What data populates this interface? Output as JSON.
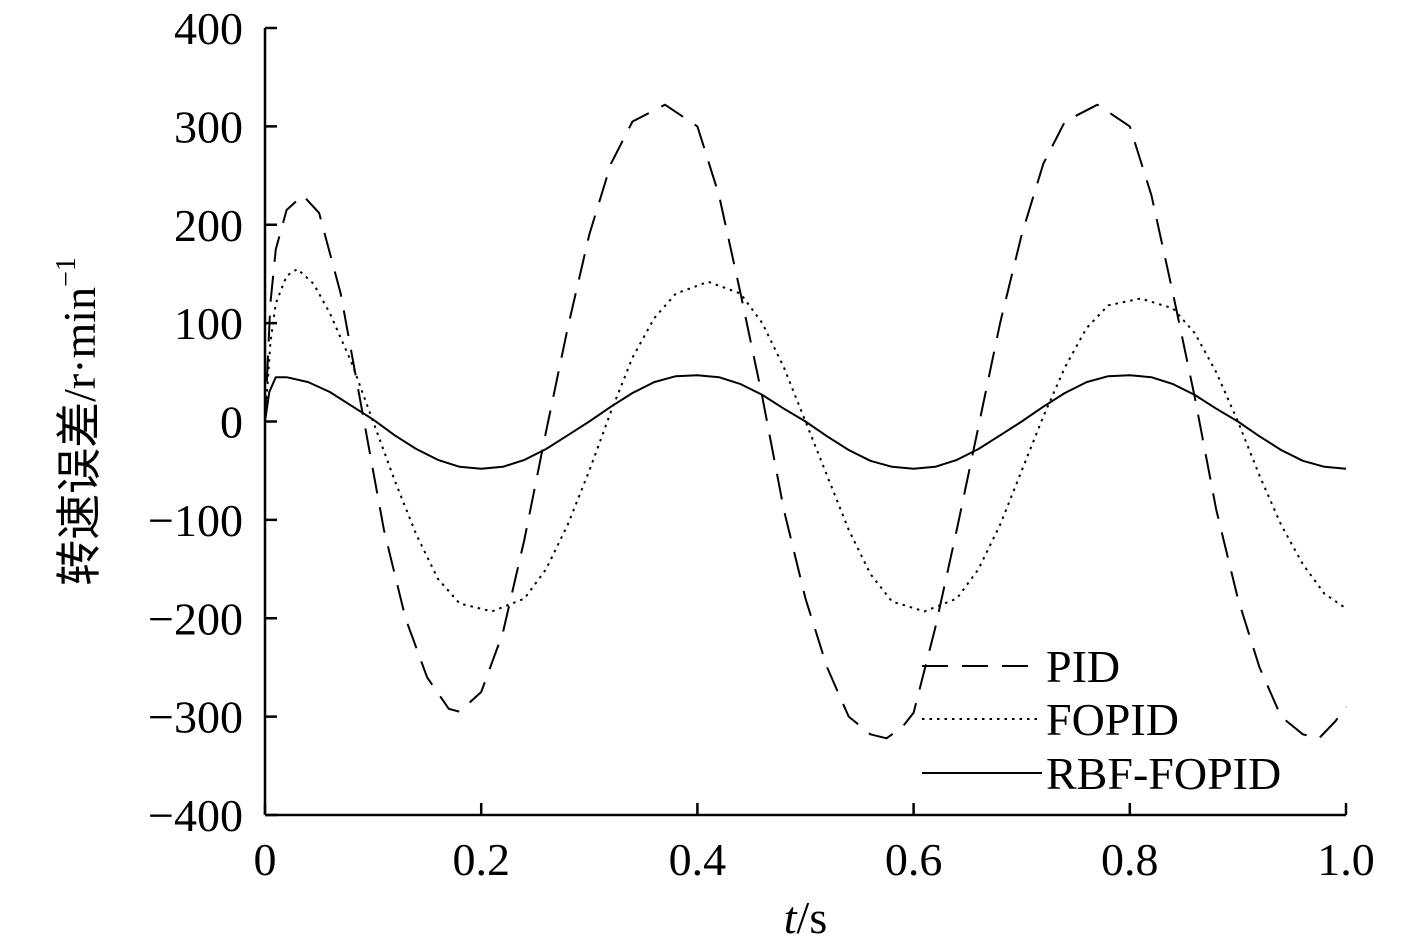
{
  "chart_data": {
    "type": "line",
    "xlabel_italic": "t",
    "xlabel_rest": "/s",
    "ylabel_main": "转速误差/r·min",
    "ylabel_sup": "−1",
    "xlim": [
      0,
      1.0
    ],
    "ylim": [
      -400,
      400
    ],
    "xticks": [
      0,
      0.2,
      0.4,
      0.6,
      0.8,
      1.0
    ],
    "xtick_labels": [
      "0",
      "0.2",
      "0.4",
      "0.6",
      "0.8",
      "1.0"
    ],
    "yticks": [
      400,
      300,
      200,
      100,
      0,
      -100,
      -200,
      -300,
      -400
    ],
    "ytick_labels": [
      "400",
      "300",
      "200",
      "100",
      "0",
      "−100",
      "−200",
      "−300",
      "−400"
    ],
    "grid": false,
    "legend_position": "bottom-right",
    "colors": {
      "line": "#000000",
      "background": "#ffffff"
    },
    "series": [
      {
        "name": "PID",
        "style": "dashed",
        "points": [
          [
            0.0,
            0
          ],
          [
            0.005,
            120
          ],
          [
            0.01,
            175
          ],
          [
            0.02,
            215
          ],
          [
            0.035,
            230
          ],
          [
            0.05,
            212
          ],
          [
            0.07,
            130
          ],
          [
            0.09,
            10
          ],
          [
            0.11,
            -110
          ],
          [
            0.13,
            -200
          ],
          [
            0.15,
            -260
          ],
          [
            0.17,
            -292
          ],
          [
            0.18,
            -295
          ],
          [
            0.2,
            -275
          ],
          [
            0.22,
            -215
          ],
          [
            0.24,
            -120
          ],
          [
            0.26,
            -10
          ],
          [
            0.28,
            95
          ],
          [
            0.3,
            190
          ],
          [
            0.32,
            262
          ],
          [
            0.34,
            305
          ],
          [
            0.37,
            322
          ],
          [
            0.4,
            300
          ],
          [
            0.42,
            230
          ],
          [
            0.44,
            130
          ],
          [
            0.46,
            25
          ],
          [
            0.48,
            -90
          ],
          [
            0.5,
            -180
          ],
          [
            0.52,
            -250
          ],
          [
            0.54,
            -300
          ],
          [
            0.56,
            -318
          ],
          [
            0.575,
            -322
          ],
          [
            0.59,
            -310
          ],
          [
            0.6,
            -296
          ],
          [
            0.62,
            -210
          ],
          [
            0.64,
            -110
          ],
          [
            0.66,
            -5
          ],
          [
            0.68,
            100
          ],
          [
            0.7,
            190
          ],
          [
            0.72,
            262
          ],
          [
            0.74,
            305
          ],
          [
            0.77,
            322
          ],
          [
            0.8,
            300
          ],
          [
            0.82,
            230
          ],
          [
            0.84,
            130
          ],
          [
            0.86,
            25
          ],
          [
            0.88,
            -90
          ],
          [
            0.9,
            -180
          ],
          [
            0.92,
            -250
          ],
          [
            0.94,
            -300
          ],
          [
            0.96,
            -318
          ],
          [
            0.975,
            -322
          ],
          [
            0.99,
            -305
          ],
          [
            1.0,
            -290
          ]
        ]
      },
      {
        "name": "FOPID",
        "style": "dotted",
        "points": [
          [
            0.0,
            0
          ],
          [
            0.005,
            80
          ],
          [
            0.01,
            120
          ],
          [
            0.02,
            148
          ],
          [
            0.03,
            155
          ],
          [
            0.045,
            140
          ],
          [
            0.06,
            110
          ],
          [
            0.08,
            60
          ],
          [
            0.1,
            0
          ],
          [
            0.12,
            -60
          ],
          [
            0.14,
            -115
          ],
          [
            0.16,
            -160
          ],
          [
            0.18,
            -185
          ],
          [
            0.21,
            -193
          ],
          [
            0.24,
            -180
          ],
          [
            0.26,
            -150
          ],
          [
            0.28,
            -105
          ],
          [
            0.3,
            -50
          ],
          [
            0.32,
            10
          ],
          [
            0.34,
            65
          ],
          [
            0.36,
            105
          ],
          [
            0.38,
            130
          ],
          [
            0.41,
            142
          ],
          [
            0.44,
            130
          ],
          [
            0.46,
            100
          ],
          [
            0.48,
            55
          ],
          [
            0.5,
            0
          ],
          [
            0.52,
            -55
          ],
          [
            0.54,
            -110
          ],
          [
            0.56,
            -155
          ],
          [
            0.58,
            -183
          ],
          [
            0.61,
            -193
          ],
          [
            0.64,
            -180
          ],
          [
            0.66,
            -150
          ],
          [
            0.68,
            -105
          ],
          [
            0.7,
            -50
          ],
          [
            0.72,
            5
          ],
          [
            0.74,
            55
          ],
          [
            0.76,
            95
          ],
          [
            0.78,
            118
          ],
          [
            0.81,
            125
          ],
          [
            0.84,
            115
          ],
          [
            0.86,
            90
          ],
          [
            0.88,
            50
          ],
          [
            0.9,
            0
          ],
          [
            0.92,
            -55
          ],
          [
            0.94,
            -105
          ],
          [
            0.96,
            -145
          ],
          [
            0.98,
            -175
          ],
          [
            1.0,
            -190
          ]
        ]
      },
      {
        "name": "RBF-FOPID",
        "style": "solid",
        "points": [
          [
            0.0,
            0
          ],
          [
            0.004,
            30
          ],
          [
            0.01,
            45
          ],
          [
            0.02,
            45
          ],
          [
            0.04,
            40
          ],
          [
            0.06,
            30
          ],
          [
            0.08,
            16
          ],
          [
            0.1,
            2
          ],
          [
            0.12,
            -14
          ],
          [
            0.14,
            -28
          ],
          [
            0.16,
            -39
          ],
          [
            0.18,
            -46
          ],
          [
            0.2,
            -48
          ],
          [
            0.22,
            -46
          ],
          [
            0.24,
            -39
          ],
          [
            0.26,
            -28
          ],
          [
            0.28,
            -14
          ],
          [
            0.3,
            0
          ],
          [
            0.32,
            15
          ],
          [
            0.34,
            29
          ],
          [
            0.36,
            40
          ],
          [
            0.38,
            46
          ],
          [
            0.4,
            47
          ],
          [
            0.42,
            45
          ],
          [
            0.44,
            38
          ],
          [
            0.46,
            27
          ],
          [
            0.48,
            13
          ],
          [
            0.5,
            0
          ],
          [
            0.52,
            -15
          ],
          [
            0.54,
            -29
          ],
          [
            0.56,
            -40
          ],
          [
            0.58,
            -46
          ],
          [
            0.6,
            -48
          ],
          [
            0.62,
            -46
          ],
          [
            0.64,
            -39
          ],
          [
            0.66,
            -28
          ],
          [
            0.68,
            -14
          ],
          [
            0.7,
            0
          ],
          [
            0.72,
            15
          ],
          [
            0.74,
            29
          ],
          [
            0.76,
            40
          ],
          [
            0.78,
            46
          ],
          [
            0.8,
            47
          ],
          [
            0.82,
            45
          ],
          [
            0.84,
            38
          ],
          [
            0.86,
            27
          ],
          [
            0.88,
            13
          ],
          [
            0.9,
            0
          ],
          [
            0.92,
            -15
          ],
          [
            0.94,
            -29
          ],
          [
            0.96,
            -40
          ],
          [
            0.98,
            -46
          ],
          [
            1.0,
            -48
          ]
        ]
      }
    ]
  }
}
